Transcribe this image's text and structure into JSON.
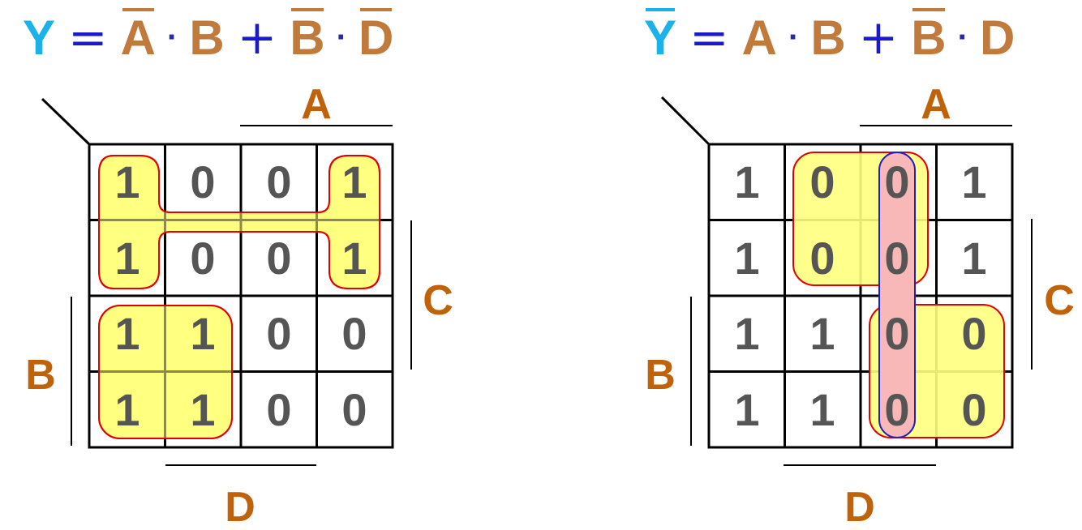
{
  "left": {
    "formula": {
      "output": "Y",
      "eq": "=",
      "t1a": "A",
      "t1b": "B",
      "plus": "+",
      "t2a": "B",
      "t2b": "D"
    },
    "labels": {
      "A": "A",
      "B": "B",
      "C": "C",
      "D": "D"
    },
    "cells": [
      [
        "1",
        "0",
        "0",
        "1"
      ],
      [
        "1",
        "0",
        "0",
        "1"
      ],
      [
        "1",
        "1",
        "0",
        "0"
      ],
      [
        "1",
        "1",
        "0",
        "0"
      ]
    ]
  },
  "right": {
    "formula": {
      "output": "Y",
      "eq": "=",
      "t1a": "A",
      "t1b": "B",
      "plus": "+",
      "t2a": "B",
      "t2b": "D"
    },
    "labels": {
      "A": "A",
      "B": "B",
      "C": "C",
      "D": "D"
    },
    "cells": [
      [
        "1",
        "0",
        "0",
        "1"
      ],
      [
        "1",
        "0",
        "0",
        "1"
      ],
      [
        "1",
        "1",
        "0",
        "0"
      ],
      [
        "1",
        "1",
        "0",
        "0"
      ]
    ]
  },
  "colors": {
    "output": "#1ab2e8",
    "variable": "#c07a3c",
    "label": "#c0620a",
    "digit": "#555555",
    "group_fill": "#ffff80",
    "group_stroke": "#e00000",
    "pink_fill": "#f8b8b8",
    "pink_stroke": "#2020c0"
  }
}
